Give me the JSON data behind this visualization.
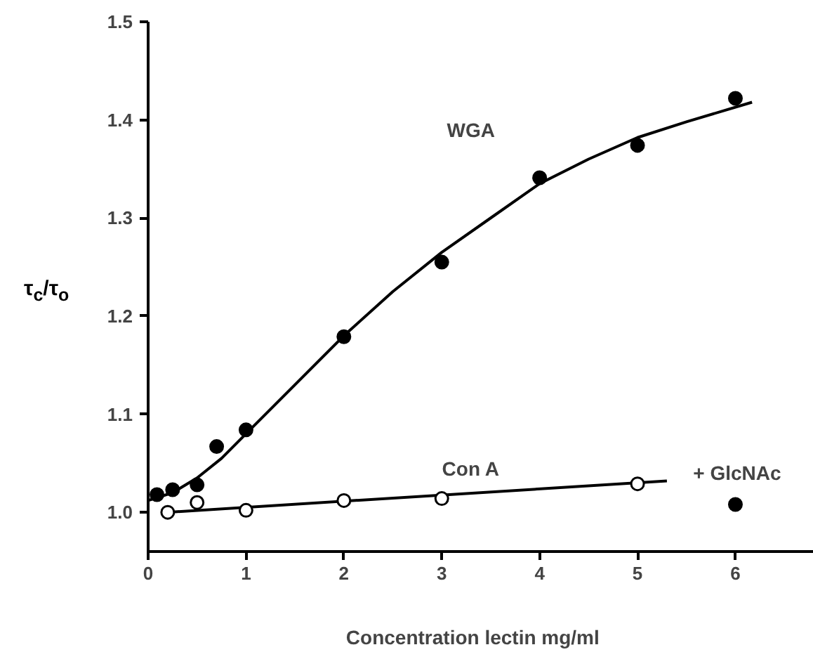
{
  "chart_data": {
    "type": "scatter",
    "xlabel": "Concentration  lectin   mg/ml",
    "ylabel": "τ$_{c}$/τ$_{o}$",
    "xlim": [
      0,
      6.8
    ],
    "ylim": [
      0.96,
      1.5
    ],
    "xticks": [
      0,
      1,
      2,
      3,
      4,
      5,
      6
    ],
    "yticks": [
      {
        "value": 1.0,
        "label": "1.0"
      },
      {
        "value": 1.1,
        "label": "1.1"
      },
      {
        "value": 1.2,
        "label": "1.2"
      },
      {
        "value": 1.3,
        "label": "1.3"
      },
      {
        "value": 1.4,
        "label": "1.4"
      },
      {
        "value": 1.5,
        "label": "1.5"
      }
    ],
    "grid": false,
    "series": [
      {
        "type": "line",
        "color": "#000000",
        "x": [
          0,
          0.25,
          0.5,
          0.75,
          1,
          1.5,
          2,
          2.5,
          3,
          3.5,
          4,
          4.5,
          5,
          5.5,
          6.17
        ],
        "values": [
          1.012,
          1.02,
          1.035,
          1.055,
          1.08,
          1.13,
          1.18,
          1.225,
          1.265,
          1.3,
          1.335,
          1.36,
          1.382,
          1.398,
          1.418
        ]
      },
      {
        "type": "line",
        "color": "#000000",
        "x": [
          0.2,
          5.3
        ],
        "values": [
          1.0,
          1.032
        ]
      },
      {
        "color": "#000000",
        "marker": "circle",
        "x": [
          0.09,
          0.25,
          0.5,
          0.7,
          1,
          2,
          3,
          4,
          5,
          6
        ],
        "values": [
          1.018,
          1.023,
          1.028,
          1.067,
          1.084,
          1.179,
          1.255,
          1.341,
          1.374,
          1.422
        ]
      },
      {
        "color": "#ffffff",
        "marker": "circle",
        "x": [
          0.2,
          0.5,
          1,
          2,
          3,
          5
        ],
        "values": [
          1.0,
          1.01,
          1.002,
          1.012,
          1.014,
          1.029
        ]
      },
      {
        "color": "#000000",
        "marker": "circle",
        "x": [
          6
        ],
        "values": [
          1.008
        ]
      }
    ],
    "annotations": [
      "WGA",
      "Con A",
      "+ GlcNAc"
    ]
  }
}
